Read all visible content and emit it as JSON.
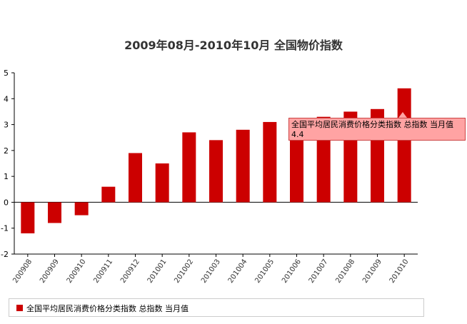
{
  "chart_data": {
    "type": "bar",
    "title": "2009年08月-2010年10月 全国物价指数",
    "categories": [
      "200908",
      "200909",
      "200910",
      "200911",
      "200912",
      "201001",
      "201002",
      "201003",
      "201004",
      "201005",
      "201006",
      "201007",
      "201008",
      "201009",
      "201010"
    ],
    "series": [
      {
        "name": "全国平均居民消费价格分类指数 总指数 当月值",
        "values": [
          -1.2,
          -0.8,
          -0.5,
          0.6,
          1.9,
          1.5,
          2.7,
          2.4,
          2.8,
          3.1,
          2.9,
          3.3,
          3.5,
          3.6,
          4.4
        ]
      }
    ],
    "ylim": [
      -2,
      5
    ],
    "yticks": [
      "-2",
      "-1",
      "0",
      "1",
      "2",
      "3",
      "4",
      "5"
    ],
    "bar_color": "#cc0000",
    "grid": false,
    "legend_position": "bottom",
    "tooltip": {
      "label": "全国平均居民消费价格分类指数 总指数 当月值",
      "value": "4.4"
    }
  }
}
